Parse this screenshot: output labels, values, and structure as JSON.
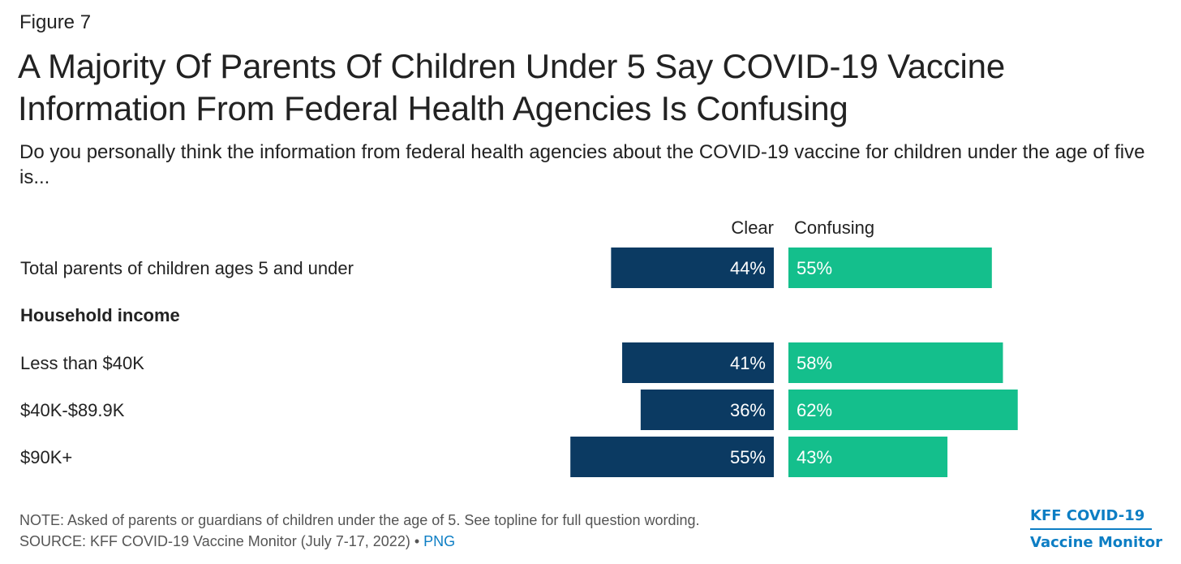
{
  "figure_label": "Figure 7",
  "title": "A Majority Of Parents Of Children Under 5 Say COVID-19 Vaccine Information From Federal Health Agencies Is Confusing",
  "subtitle": "Do you personally think the information from federal health agencies about the COVID-19 vaccine for children under the age of five is...",
  "chart_data": {
    "type": "bar",
    "orientation": "horizontal-diverging",
    "headers": [
      "Clear",
      "Confusing"
    ],
    "rows": [
      {
        "label": "Total parents of children ages 5 and under",
        "is_heading": false,
        "clear": 44,
        "confusing": 55
      },
      {
        "label": "Household income",
        "is_heading": true
      },
      {
        "label": "Less than $40K",
        "is_heading": false,
        "clear": 41,
        "confusing": 58
      },
      {
        "label": "$40K-$89.9K",
        "is_heading": false,
        "clear": 36,
        "confusing": 62
      },
      {
        "label": "$90K+",
        "is_heading": false,
        "clear": 55,
        "confusing": 43
      }
    ],
    "series": [
      {
        "name": "Clear",
        "values": [
          44,
          41,
          36,
          55
        ],
        "color": "#0b3a62"
      },
      {
        "name": "Confusing",
        "values": [
          55,
          58,
          62,
          43
        ],
        "color": "#14bf8c"
      }
    ],
    "value_suffix": "%",
    "xlim": [
      0,
      100
    ]
  },
  "note": "NOTE: Asked of parents or guardians of children under the age of 5. See topline for full question wording.",
  "source_prefix": "SOURCE: KFF COVID-19 Vaccine Monitor (July 7-17, 2022) • ",
  "source_link": "PNG",
  "logo": {
    "line1": "KFF COVID-19",
    "line2": "Vaccine Monitor"
  },
  "colors": {
    "clear": "#0b3a62",
    "confusing": "#14bf8c",
    "link": "#0d7ec4"
  }
}
